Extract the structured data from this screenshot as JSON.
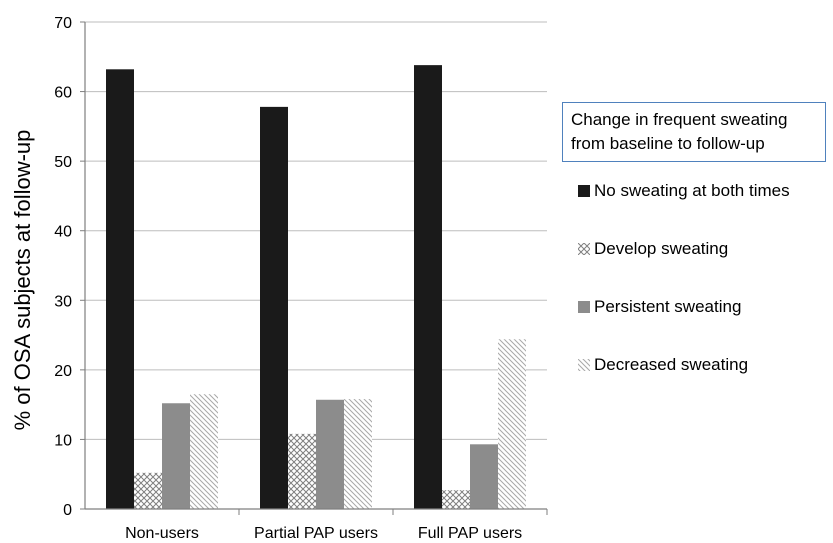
{
  "chart_data": {
    "type": "bar",
    "categories": [
      "Non-users",
      "Partial PAP users",
      "Full PAP users"
    ],
    "series": [
      {
        "name": "No sweating at both times",
        "values": [
          63.2,
          57.8,
          63.8
        ],
        "color": "#1a1a1a",
        "pattern": "solid-black"
      },
      {
        "name": "Develop sweating",
        "values": [
          5.2,
          10.8,
          2.7
        ],
        "color": "#808080",
        "pattern": "crosshatch"
      },
      {
        "name": "Persistent sweating",
        "values": [
          15.2,
          15.7,
          9.3
        ],
        "color": "#8c8c8c",
        "pattern": "solid-gray"
      },
      {
        "name": "Decreased sweating",
        "values": [
          16.5,
          15.8,
          24.4
        ],
        "color": "#a0a0a0",
        "pattern": "diagonal-stripes"
      }
    ],
    "legend_title": "Change in frequent sweating from baseline to follow-up",
    "ylabel": "% of OSA subjects at follow-up",
    "xlabel": "",
    "ylim": [
      0,
      70
    ],
    "yticks": [
      0,
      10,
      20,
      30,
      40,
      50,
      60,
      70
    ],
    "grid": "horizontal",
    "legend_position": "right"
  }
}
